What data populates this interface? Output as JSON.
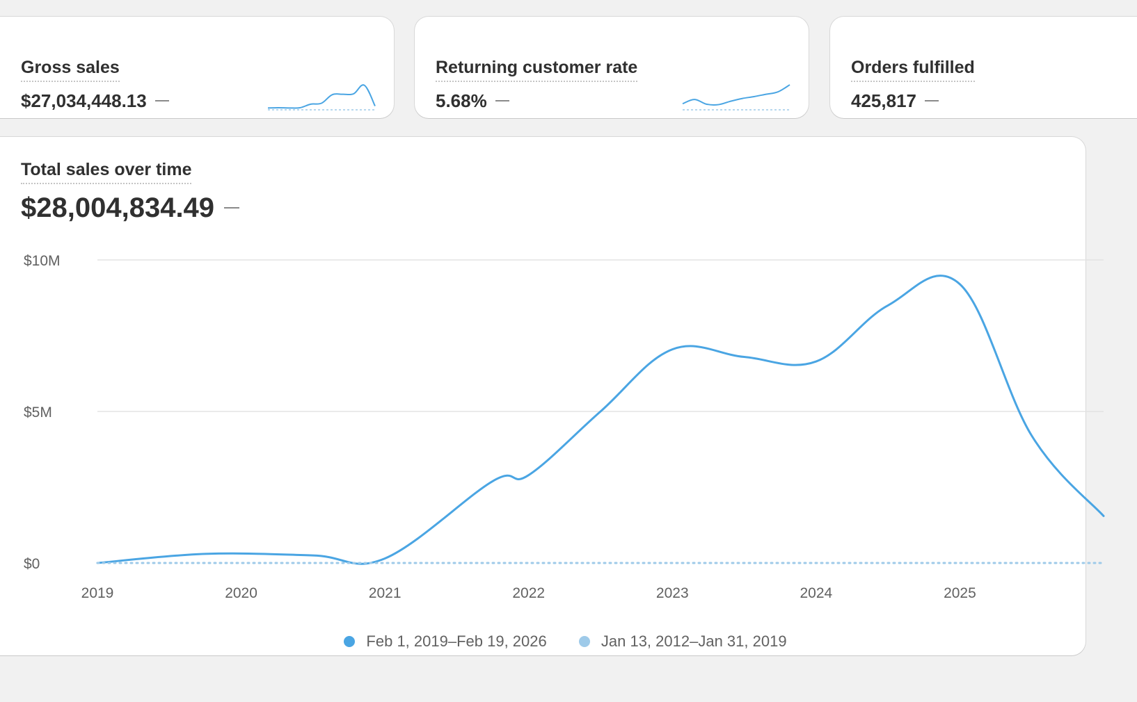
{
  "metrics": [
    {
      "title": "Gross sales",
      "value": "$27,034,448.13",
      "spark": [
        0.02,
        0.03,
        0.02,
        0.03,
        0.18,
        0.22,
        0.58,
        0.6,
        0.62,
        0.98,
        0.1
      ]
    },
    {
      "title": "Returning customer rate",
      "value": "5.68%",
      "spark": [
        0.2,
        0.38,
        0.18,
        0.16,
        0.3,
        0.42,
        0.5,
        0.6,
        0.7,
        1.0
      ]
    },
    {
      "title": "Orders fulfilled",
      "value": "425,817",
      "spark": []
    }
  ],
  "main": {
    "title": "Total sales over time",
    "value": "$28,004,834.49"
  },
  "legend": [
    {
      "label": "Feb 1, 2019–Feb 19, 2026",
      "color": "#4aa5e3"
    },
    {
      "label": "Jan 13, 2012–Jan 31, 2019",
      "color": "#9ecae9"
    }
  ],
  "chart_data": {
    "type": "line",
    "title": "Total sales over time",
    "xlabel": "",
    "ylabel": "",
    "x_ticks": [
      "2019",
      "2020",
      "2021",
      "2022",
      "2023",
      "2024",
      "2025"
    ],
    "y_ticks": [
      "$0",
      "$5M",
      "$10M"
    ],
    "ylim": [
      0,
      10000000
    ],
    "xlim": [
      2019.0,
      2026.0
    ],
    "grid": true,
    "legend_position": "bottom",
    "series": [
      {
        "name": "Feb 1, 2019–Feb 19, 2026",
        "color": "#4aa5e3",
        "style": "solid",
        "x": [
          2019.0,
          2019.75,
          2020.5,
          2021.0,
          2021.75,
          2022.0,
          2022.5,
          2023.0,
          2023.5,
          2024.0,
          2024.5,
          2025.0,
          2025.5,
          2026.0
        ],
        "y": [
          0,
          300000,
          250000,
          150000,
          2700000,
          2900000,
          5000000,
          7050000,
          6800000,
          6650000,
          8500000,
          9200000,
          4200000,
          1550000
        ]
      },
      {
        "name": "Jan 13, 2012–Jan 31, 2019",
        "color": "#9ecae9",
        "style": "dotted",
        "x": [
          2019.0,
          2026.0
        ],
        "y": [
          0,
          0
        ]
      }
    ]
  }
}
